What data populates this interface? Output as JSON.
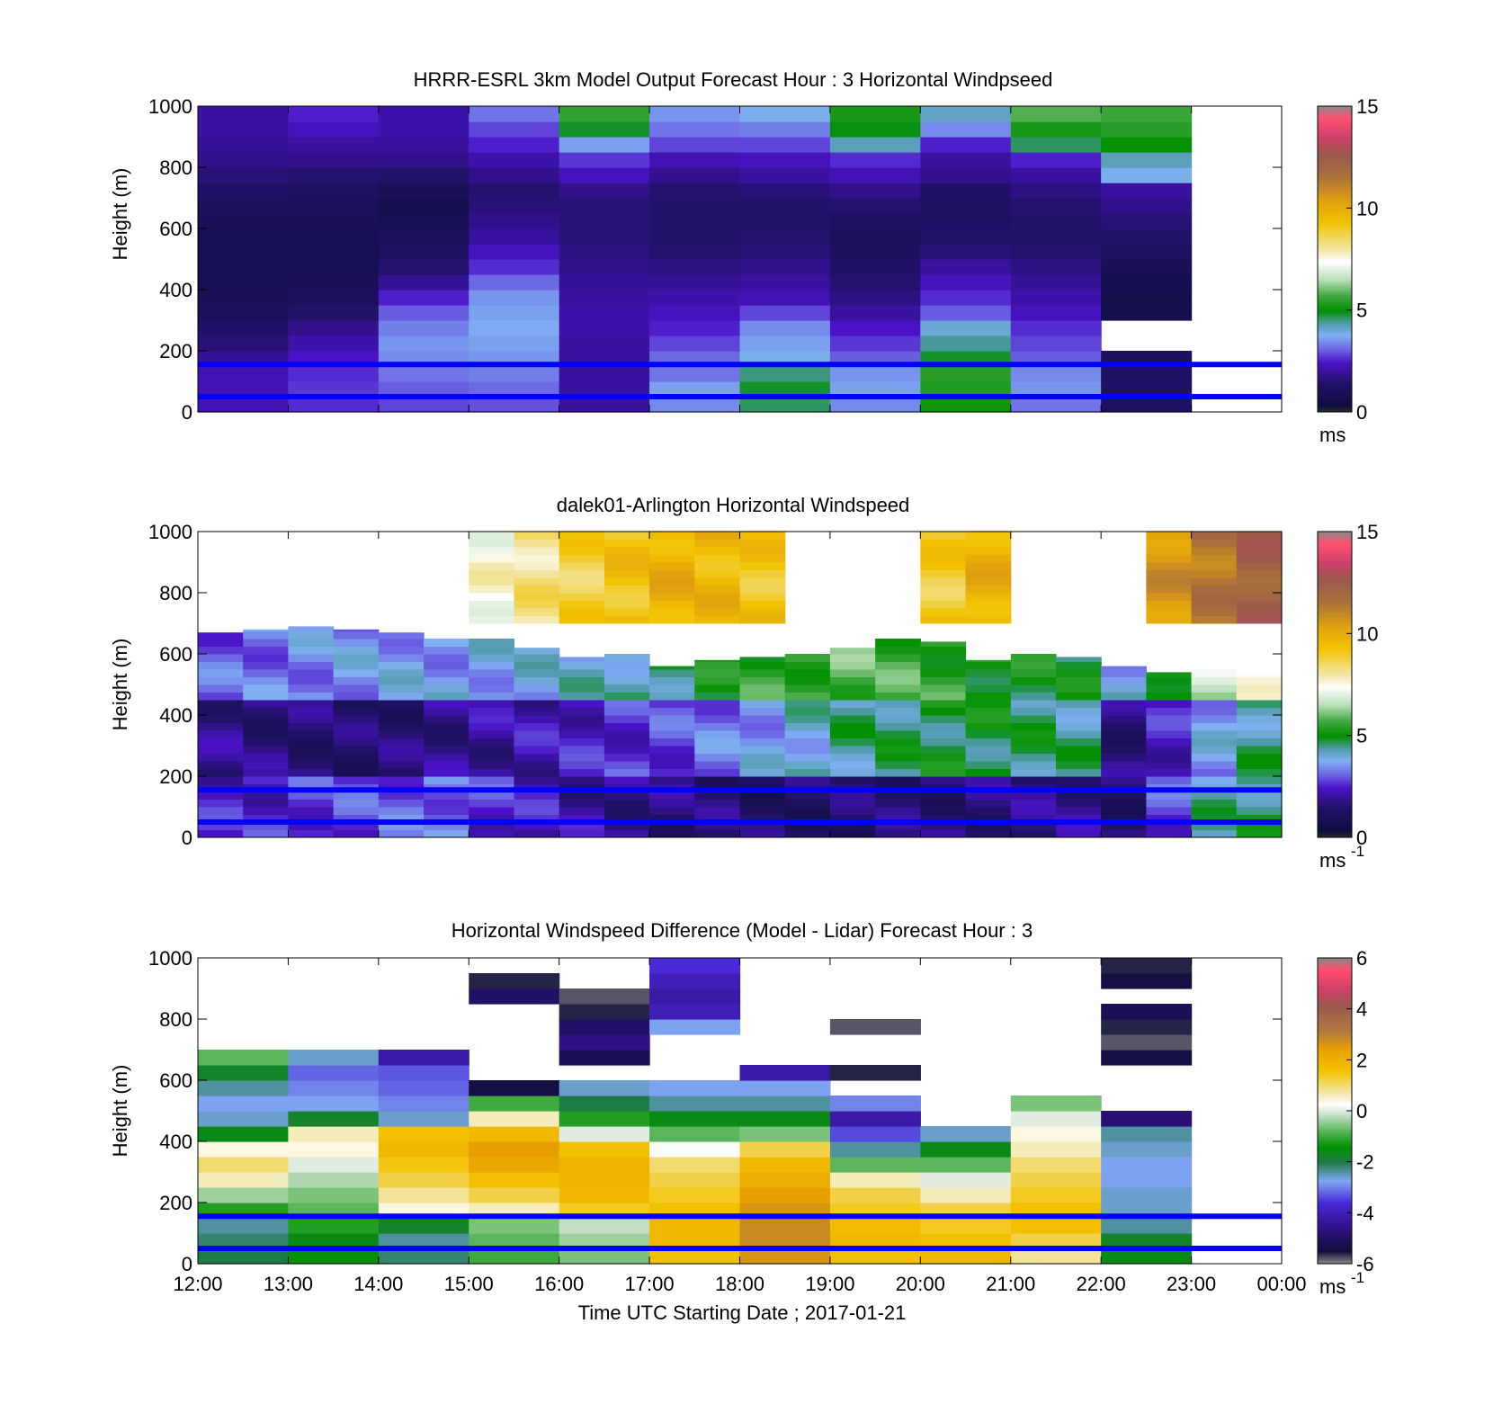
{
  "panels": [
    {
      "title": "HRRR-ESRL 3km Model Output   Forecast Hour : 3 Horizontal Windpseed",
      "ylabel": "Height (m)",
      "xlabel": "",
      "ylim": [
        0,
        1000
      ],
      "yticks": [
        "0",
        "200",
        "400",
        "600",
        "800",
        "1000"
      ],
      "show_xtick_labels": false,
      "colorbar": {
        "ticks": [
          "0",
          "5",
          "10",
          "15"
        ],
        "range": [
          0,
          15
        ],
        "palette": "speed",
        "unit": "ms",
        "unit_sup": ""
      },
      "reference_lines_m": [
        50,
        155
      ]
    },
    {
      "title": "dalek01-Arlington  Horizontal Windspeed",
      "ylabel": "Height (m)",
      "xlabel": "",
      "ylim": [
        0,
        1000
      ],
      "yticks": [
        "0",
        "200",
        "400",
        "600",
        "800",
        "1000"
      ],
      "show_xtick_labels": false,
      "colorbar": {
        "ticks": [
          "0",
          "5",
          "10",
          "15"
        ],
        "range": [
          0,
          15
        ],
        "palette": "speed",
        "unit": "ms",
        "unit_sup": "-1"
      },
      "reference_lines_m": [
        50,
        155
      ]
    },
    {
      "title": "Horizontal Windspeed Difference (Model - Lidar) Forecast Hour : 3",
      "ylabel": "Height (m)",
      "xlabel": "Time UTC  Starting Date ; 2017-01-21",
      "ylim": [
        0,
        1000
      ],
      "yticks": [
        "0",
        "200",
        "400",
        "600",
        "800",
        "1000"
      ],
      "show_xtick_labels": true,
      "colorbar": {
        "ticks": [
          "-6",
          "-4",
          "-2",
          "0",
          "2",
          "4",
          "6"
        ],
        "range": [
          -6,
          6
        ],
        "palette": "diff",
        "unit": "ms",
        "unit_sup": "-1"
      },
      "reference_lines_m": [
        50,
        155
      ]
    }
  ],
  "xticks": [
    "12:00",
    "13:00",
    "14:00",
    "15:00",
    "16:00",
    "17:00",
    "18:00",
    "19:00",
    "20:00",
    "21:00",
    "22:00",
    "23:00",
    "00:00"
  ],
  "colors": {
    "reference_line": "#0000ff",
    "missing": "#808080"
  },
  "chart_data": [
    {
      "type": "heatmap",
      "title": "HRRR-ESRL 3km Model Output   Forecast Hour : 3 Horizontal Windpseed",
      "ylabel": "Height (m)",
      "x_hours_utc": [
        "12:00",
        "13:00",
        "14:00",
        "15:00",
        "16:00",
        "17:00",
        "18:00",
        "19:00",
        "20:00",
        "21:00",
        "22:00"
      ],
      "height_levels_m": [
        25,
        75,
        125,
        175,
        225,
        275,
        325,
        375,
        425,
        475,
        525,
        575,
        625,
        675,
        725,
        775,
        825,
        875,
        925,
        975
      ],
      "z_unit": "m/s",
      "z_range": [
        0,
        15
      ],
      "values": [
        [
          2.2,
          2.2,
          2.2,
          1.9,
          1.6,
          1.3,
          1.0,
          0.9,
          0.8,
          0.8,
          0.8,
          0.8,
          0.9,
          1.1,
          1.3,
          1.6,
          1.8,
          1.9,
          2.0,
          2.0
        ],
        [
          2.6,
          2.7,
          2.6,
          2.4,
          2.1,
          1.8,
          1.4,
          1.1,
          0.9,
          0.8,
          0.8,
          0.8,
          0.9,
          1.0,
          1.2,
          1.5,
          1.8,
          2.0,
          2.3,
          2.5
        ],
        [
          2.8,
          3.0,
          3.2,
          3.4,
          3.5,
          3.3,
          3.0,
          2.5,
          1.9,
          1.5,
          1.2,
          1.0,
          0.8,
          0.7,
          0.9,
          1.4,
          1.8,
          2.0,
          2.1,
          2.1
        ],
        [
          2.9,
          3.1,
          3.3,
          3.5,
          3.6,
          3.7,
          3.6,
          3.5,
          3.1,
          2.6,
          2.3,
          2.0,
          1.8,
          1.6,
          1.5,
          1.8,
          2.1,
          2.5,
          2.8,
          3.2
        ],
        [
          2.0,
          2.0,
          2.0,
          2.0,
          2.0,
          2.1,
          2.1,
          2.0,
          1.9,
          1.8,
          1.7,
          1.6,
          1.6,
          1.6,
          1.8,
          2.3,
          2.7,
          3.6,
          4.8,
          5.5
        ],
        [
          3.4,
          3.6,
          3.2,
          3.1,
          2.8,
          2.5,
          2.3,
          2.1,
          1.9,
          1.7,
          1.5,
          1.4,
          1.4,
          1.4,
          1.5,
          1.8,
          2.2,
          2.8,
          3.2,
          3.5
        ],
        [
          4.6,
          4.8,
          4.5,
          3.8,
          3.6,
          3.4,
          2.8,
          2.2,
          2.0,
          1.8,
          1.6,
          1.5,
          1.4,
          1.4,
          1.6,
          2.0,
          2.3,
          2.8,
          3.3,
          3.8
        ],
        [
          3.4,
          3.6,
          3.5,
          3.0,
          2.7,
          2.4,
          2.0,
          1.7,
          1.5,
          1.3,
          1.1,
          1.0,
          1.2,
          1.5,
          1.8,
          2.2,
          2.6,
          4.2,
          4.9,
          5.2
        ],
        [
          5.1,
          5.3,
          5.4,
          4.8,
          4.4,
          4.0,
          3.0,
          2.6,
          2.3,
          2.0,
          1.6,
          1.4,
          1.2,
          1.2,
          1.3,
          1.8,
          2.0,
          2.5,
          3.4,
          4.1
        ],
        [
          3.2,
          3.5,
          3.4,
          3.0,
          2.8,
          2.6,
          2.3,
          2.1,
          1.9,
          1.7,
          1.5,
          1.4,
          1.4,
          1.5,
          1.7,
          2.0,
          2.5,
          4.6,
          5.2,
          5.8
        ],
        [
          1.2,
          1.3,
          1.2,
          1.1,
          null,
          null,
          0.6,
          0.6,
          0.7,
          0.9,
          1.2,
          1.4,
          1.6,
          1.8,
          2.0,
          3.8,
          4.2,
          5.0,
          5.4,
          5.6
        ]
      ]
    },
    {
      "type": "heatmap",
      "title": "dalek01-Arlington  Horizontal Windspeed",
      "ylabel": "Height (m)",
      "x_range_utc": [
        "12:00",
        "00:00"
      ],
      "z_unit": "m/s",
      "z_range": [
        0,
        15
      ],
      "profile_time_offset_hours": [
        0.0,
        0.5,
        1.0,
        1.5,
        2.0,
        2.5,
        3.0,
        3.5,
        4.0,
        4.5,
        5.0,
        5.5,
        6.0,
        6.5,
        7.0,
        7.5,
        8.0,
        8.5,
        9.0,
        9.5,
        10.0,
        10.5,
        11.0,
        11.5
      ],
      "data_top_height_m": [
        670,
        680,
        690,
        680,
        670,
        650,
        650,
        620,
        590,
        600,
        560,
        580,
        590,
        600,
        620,
        650,
        640,
        580,
        600,
        590,
        560,
        540,
        550,
        540
      ],
      "mean_speed_by_layer_m_s": {
        "0-200 m": [
          2.4,
          2.5,
          2.7,
          2.8,
          3.0,
          3.2,
          2.6,
          2.3,
          2.0,
          1.8,
          1.6,
          1.5,
          1.3,
          1.3,
          1.4,
          1.5,
          1.5,
          1.6,
          1.7,
          1.8,
          1.4,
          2.8,
          4.3,
          4.6
        ],
        "200-450 m": [
          1.8,
          1.6,
          1.5,
          1.4,
          1.5,
          1.8,
          2.0,
          2.2,
          2.4,
          2.6,
          2.8,
          3.2,
          3.6,
          4.0,
          4.4,
          4.6,
          4.8,
          4.8,
          4.6,
          4.4,
          1.6,
          2.4,
          3.6,
          4.4
        ],
        "450-700 m": [
          3.0,
          3.2,
          3.4,
          3.5,
          3.6,
          3.6,
          3.7,
          3.8,
          4.0,
          4.2,
          4.6,
          5.0,
          5.4,
          5.6,
          5.8,
          5.6,
          5.4,
          5.2,
          5.0,
          4.8,
          3.8,
          5.4,
          6.6,
          7.2
        ],
        "700-1000 m": [
          null,
          null,
          null,
          null,
          null,
          null,
          7.5,
          8.2,
          8.8,
          9.3,
          9.8,
          9.6,
          9.2,
          null,
          null,
          null,
          9.0,
          9.8,
          null,
          null,
          null,
          10.6,
          11.4,
          12.2
        ]
      }
    },
    {
      "type": "heatmap",
      "title": "Horizontal Windspeed Difference (Model - Lidar) Forecast Hour : 3",
      "ylabel": "Height (m)",
      "xlabel": "Time UTC  Starting Date ; 2017-01-21",
      "x_hours_utc": [
        "12:00",
        "13:00",
        "14:00",
        "15:00",
        "16:00",
        "17:00",
        "18:00",
        "19:00",
        "20:00",
        "21:00",
        "22:00"
      ],
      "height_levels_m": [
        25,
        75,
        125,
        175,
        225,
        275,
        325,
        375,
        425,
        475,
        525,
        575,
        625,
        675,
        725,
        775,
        825,
        875,
        925,
        975
      ],
      "z_unit": "m/s",
      "z_range": [
        -6,
        6
      ],
      "values": [
        [
          -2.0,
          -2.2,
          -2.4,
          -1.2,
          -0.4,
          0.6,
          1.0,
          0.4,
          -1.6,
          -2.6,
          -2.8,
          -2.4,
          -1.8,
          -0.8,
          null,
          null,
          null,
          null,
          null,
          null
        ],
        [
          -1.4,
          -1.6,
          -1.2,
          -0.8,
          -0.6,
          -0.3,
          0.0,
          0.4,
          0.6,
          -1.8,
          -2.8,
          -3.0,
          -3.2,
          -2.6,
          null,
          null,
          null,
          null,
          null,
          null
        ],
        [
          -2.2,
          -2.4,
          -1.8,
          0.4,
          0.8,
          1.2,
          1.5,
          1.8,
          1.6,
          -2.6,
          -3.0,
          -3.2,
          -3.3,
          -4.2,
          null,
          null,
          null,
          null,
          null,
          null
        ],
        [
          -1.0,
          -0.8,
          -0.6,
          0.6,
          1.2,
          1.6,
          2.2,
          2.4,
          1.8,
          0.6,
          -1.0,
          -5.4,
          null,
          null,
          null,
          null,
          null,
          -5.0,
          -5.6,
          null
        ],
        [
          -0.6,
          -0.4,
          -0.2,
          1.4,
          1.8,
          1.9,
          1.9,
          1.6,
          0.0,
          -1.2,
          -2.0,
          -2.6,
          null,
          -5.2,
          -4.6,
          -5.0,
          -5.6,
          -5.8,
          null,
          null
        ],
        [
          1.6,
          1.8,
          1.8,
          1.6,
          1.4,
          1.2,
          1.0,
          0.2,
          -0.8,
          -1.6,
          -2.4,
          -2.8,
          null,
          null,
          null,
          -2.8,
          -4.0,
          -4.2,
          -4.0,
          -3.6
        ],
        [
          2.6,
          2.8,
          2.8,
          2.6,
          2.4,
          2.1,
          1.8,
          1.2,
          -0.6,
          -1.6,
          -2.4,
          -2.8,
          -4.2,
          null,
          null,
          null,
          null,
          null,
          null,
          null
        ],
        [
          1.6,
          1.8,
          1.7,
          1.4,
          1.2,
          0.6,
          -0.8,
          -2.4,
          -3.4,
          -4.2,
          -3.0,
          null,
          -5.6,
          null,
          null,
          -5.8,
          null,
          null,
          null,
          null
        ],
        [
          1.8,
          1.6,
          1.4,
          1.2,
          0.6,
          0.0,
          -0.8,
          -1.6,
          -2.6,
          null,
          null,
          null,
          null,
          null,
          null,
          null,
          null,
          null,
          null,
          null
        ],
        [
          0.8,
          1.2,
          1.6,
          1.6,
          1.4,
          1.2,
          1.0,
          0.6,
          0.4,
          0.0,
          -0.6,
          null,
          null,
          null,
          null,
          null,
          null,
          null,
          null,
          null
        ],
        [
          -1.6,
          -1.8,
          -2.4,
          -2.6,
          -2.6,
          -2.8,
          -2.8,
          -2.6,
          -2.4,
          -4.8,
          null,
          null,
          null,
          -5.4,
          -5.8,
          -5.6,
          -5.2,
          null,
          -5.4,
          -5.6
        ]
      ]
    }
  ]
}
